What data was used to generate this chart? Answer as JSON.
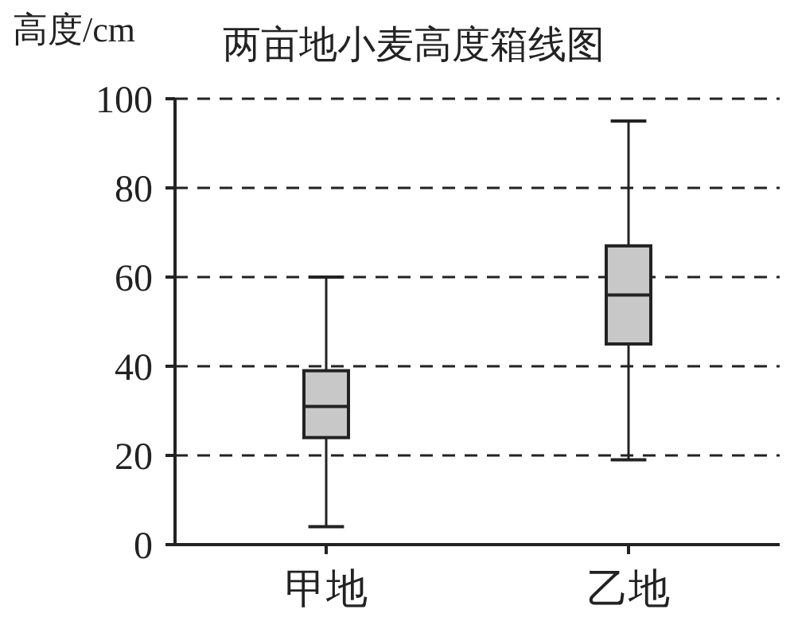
{
  "chart_data": {
    "type": "box",
    "title": "两亩地小麦高度箱线图",
    "ylabel": "高度/cm",
    "categories": [
      "甲地",
      "乙地"
    ],
    "boxes": [
      {
        "low": 4,
        "q1": 24,
        "median": 31,
        "q3": 39,
        "high": 60
      },
      {
        "low": 19,
        "q1": 45,
        "median": 56,
        "q3": 67,
        "high": 95
      }
    ],
    "color": "#c8c8c8",
    "ylim": [
      0,
      100
    ],
    "yticks": [
      0,
      20,
      40,
      60,
      80,
      100
    ],
    "grid": "y",
    "line_style": "dashed"
  }
}
